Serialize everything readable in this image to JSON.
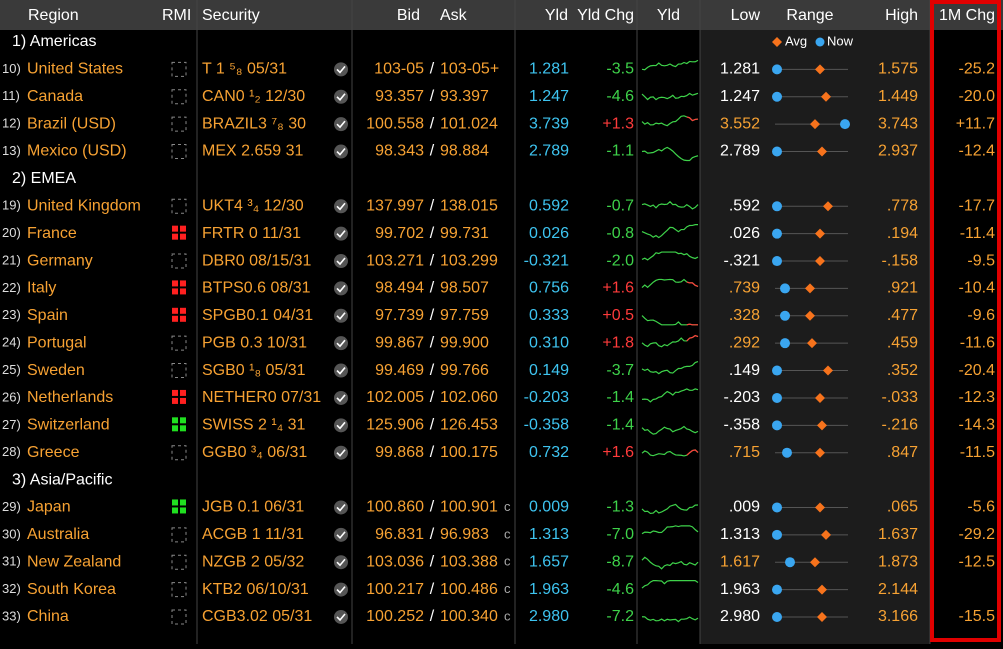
{
  "header": {
    "region": "Region",
    "rmi": "RMI",
    "security": "Security",
    "bid": "Bid",
    "ask": "Ask",
    "yld": "Yld",
    "yld_chg": "Yld Chg",
    "yld_chart": "Yld",
    "low": "Low",
    "range": "Range",
    "high": "High",
    "chg_1m": "1M Chg",
    "legend_avg": "Avg",
    "legend_now": "Now"
  },
  "groups": [
    {
      "label": "1) Americas",
      "rows": [
        {
          "num": "10)",
          "region": "United States",
          "rmi": "none",
          "security": "T 1 ⁵₈ 05/31",
          "check": true,
          "bid": "103-05",
          "ask": "103-05+",
          "yld": "1.281",
          "yld_chg": "-3.5",
          "low": "1.281",
          "low_color": "#ffffff",
          "high": "1.575",
          "chg_1m": "-25.2"
        },
        {
          "num": "11)",
          "region": "Canada",
          "rmi": "none",
          "security": "CAN0 ¹₂ 12/30",
          "check": true,
          "bid": "93.357",
          "ask": "93.397",
          "yld": "1.247",
          "yld_chg": "-4.6",
          "low": "1.247",
          "low_color": "#ffffff",
          "high": "1.449",
          "chg_1m": "-20.0"
        },
        {
          "num": "12)",
          "region": "Brazil (USD)",
          "rmi": "none",
          "security": "BRAZIL3 ⁷₈ 30",
          "check": true,
          "bid": "100.558",
          "ask": "101.024",
          "yld": "3.739",
          "yld_chg": "+1.3",
          "low": "3.552",
          "low_color": "#f7a233",
          "high": "3.743",
          "chg_1m": "+11.7"
        },
        {
          "num": "13)",
          "region": "Mexico (USD)",
          "rmi": "none",
          "security": "MEX 2.659 31",
          "check": true,
          "bid": "98.343",
          "ask": "98.884",
          "yld": "2.789",
          "yld_chg": "-1.1",
          "low": "2.789",
          "low_color": "#ffffff",
          "high": "2.937",
          "chg_1m": "-12.4"
        }
      ]
    },
    {
      "label": "2) EMEA",
      "rows": [
        {
          "num": "19)",
          "region": "United Kingdom",
          "rmi": "none",
          "security": "UKT4 ³₄ 12/30",
          "check": true,
          "bid": "137.997",
          "ask": "138.015",
          "yld": "0.592",
          "yld_chg": "-0.7",
          "low": ".592",
          "low_color": "#ffffff",
          "high": ".778",
          "chg_1m": "-17.7"
        },
        {
          "num": "20)",
          "region": "France",
          "rmi": "red",
          "security": "FRTR 0 11/31",
          "check": true,
          "bid": "99.702",
          "ask": "99.731",
          "yld": "0.026",
          "yld_chg": "-0.8",
          "low": ".026",
          "low_color": "#ffffff",
          "high": ".194",
          "chg_1m": "-11.4"
        },
        {
          "num": "21)",
          "region": "Germany",
          "rmi": "none",
          "security": "DBR0 08/15/31",
          "check": true,
          "bid": "103.271",
          "ask": "103.299",
          "yld": "-0.321",
          "yld_chg": "-2.0",
          "low": "-.321",
          "low_color": "#ffffff",
          "high": "-.158",
          "chg_1m": "-9.5"
        },
        {
          "num": "22)",
          "region": "Italy",
          "rmi": "red",
          "security": "BTPS0.6 08/31",
          "check": true,
          "bid": "98.494",
          "ask": "98.507",
          "yld": "0.756",
          "yld_chg": "+1.6",
          "low": ".739",
          "low_color": "#f7a233",
          "high": ".921",
          "chg_1m": "-10.4"
        },
        {
          "num": "23)",
          "region": "Spain",
          "rmi": "red",
          "security": "SPGB0.1 04/31",
          "check": true,
          "bid": "97.739",
          "ask": "97.759",
          "yld": "0.333",
          "yld_chg": "+0.5",
          "low": ".328",
          "low_color": "#f7a233",
          "high": ".477",
          "chg_1m": "-9.6"
        },
        {
          "num": "24)",
          "region": "Portugal",
          "rmi": "none",
          "security": "PGB 0.3 10/31",
          "check": true,
          "bid": "99.867",
          "ask": "99.900",
          "yld": "0.310",
          "yld_chg": "+1.8",
          "low": ".292",
          "low_color": "#f7a233",
          "high": ".459",
          "chg_1m": "-11.6"
        },
        {
          "num": "25)",
          "region": "Sweden",
          "rmi": "none",
          "security": "SGB0 ¹₈ 05/31",
          "check": true,
          "bid": "99.469",
          "ask": "99.766",
          "yld": "0.149",
          "yld_chg": "-3.7",
          "low": ".149",
          "low_color": "#ffffff",
          "high": ".352",
          "chg_1m": "-20.4"
        },
        {
          "num": "26)",
          "region": "Netherlands",
          "rmi": "red",
          "security": "NETHER0 07/31",
          "check": true,
          "bid": "102.005",
          "ask": "102.060",
          "yld": "-0.203",
          "yld_chg": "-1.4",
          "low": "-.203",
          "low_color": "#ffffff",
          "high": "-.033",
          "chg_1m": "-12.3"
        },
        {
          "num": "27)",
          "region": "Switzerland",
          "rmi": "green",
          "security": "SWISS 2 ¹₄ 31",
          "check": true,
          "bid": "125.906",
          "ask": "126.453",
          "yld": "-0.358",
          "yld_chg": "-1.4",
          "low": "-.358",
          "low_color": "#ffffff",
          "high": "-.216",
          "chg_1m": "-14.3"
        },
        {
          "num": "28)",
          "region": "Greece",
          "rmi": "none",
          "security": "GGB0 ³₄ 06/31",
          "check": true,
          "bid": "99.868",
          "ask": "100.175",
          "yld": "0.732",
          "yld_chg": "+1.6",
          "low": ".715",
          "low_color": "#f7a233",
          "high": ".847",
          "chg_1m": "-11.5"
        }
      ]
    },
    {
      "label": "3) Asia/Pacific",
      "rows": [
        {
          "num": "29)",
          "region": "Japan",
          "rmi": "green",
          "security": "JGB 0.1 06/31",
          "check": true,
          "bid": "100.860",
          "ask": "100.901",
          "flag": "c",
          "yld": "0.009",
          "yld_chg": "-1.3",
          "low": ".009",
          "low_color": "#ffffff",
          "high": ".065",
          "chg_1m": "-5.6"
        },
        {
          "num": "30)",
          "region": "Australia",
          "rmi": "none",
          "security": "ACGB 1 11/31",
          "check": true,
          "bid": "96.831",
          "ask": "96.983",
          "flag": "c",
          "yld": "1.313",
          "yld_chg": "-7.0",
          "low": "1.313",
          "low_color": "#ffffff",
          "high": "1.637",
          "chg_1m": "-29.2"
        },
        {
          "num": "31)",
          "region": "New Zealand",
          "rmi": "none",
          "security": "NZGB 2 05/32",
          "check": true,
          "bid": "103.036",
          "ask": "103.388",
          "flag": "c",
          "yld": "1.657",
          "yld_chg": "-8.7",
          "low": "1.617",
          "low_color": "#f7a233",
          "high": "1.873",
          "chg_1m": "-12.5"
        },
        {
          "num": "32)",
          "region": "South Korea",
          "rmi": "none",
          "security": "KTB2 06/10/31",
          "check": true,
          "bid": "100.217",
          "ask": "100.486",
          "flag": "c",
          "yld": "1.963",
          "yld_chg": "-4.6",
          "low": "1.963",
          "low_color": "#ffffff",
          "high": "2.144"
        },
        {
          "num": "33)",
          "region": "China",
          "rmi": "none",
          "security": "CGB3.02 05/31",
          "check": true,
          "bid": "100.252",
          "ask": "100.340",
          "flag": "c",
          "yld": "2.980",
          "yld_chg": "-7.2",
          "low": "2.980",
          "low_color": "#ffffff",
          "high": "3.166",
          "chg_1m": "-15.5"
        }
      ]
    }
  ]
}
